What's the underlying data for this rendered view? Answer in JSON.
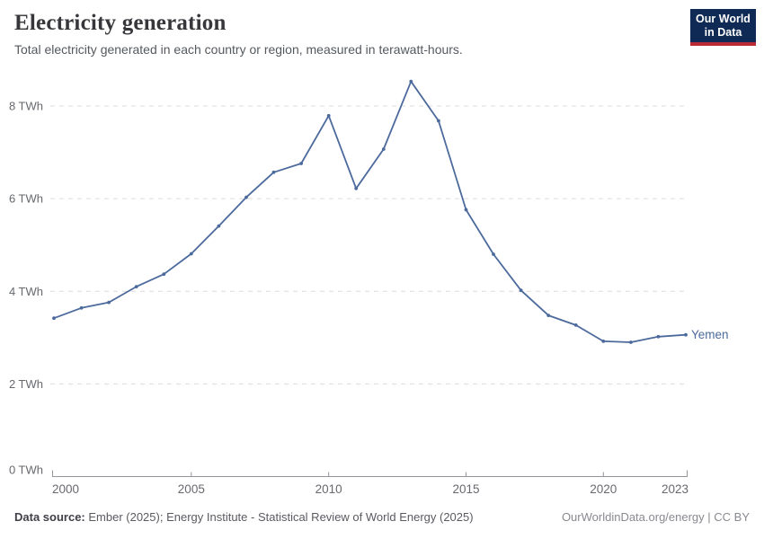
{
  "header": {
    "title": "Electricity generation",
    "subtitle": "Total electricity generated in each country or region, measured in terawatt-hours."
  },
  "logo": {
    "line1": "Our World",
    "line2": "in Data",
    "bg_color": "#0f2a54",
    "accent_color": "#bc2a35",
    "text_color": "#ffffff"
  },
  "chart_data": {
    "type": "line",
    "title": "Electricity generation",
    "xlabel": "",
    "ylabel": "",
    "unit": "TWh",
    "x": [
      2000,
      2001,
      2002,
      2003,
      2004,
      2005,
      2006,
      2007,
      2008,
      2009,
      2010,
      2011,
      2012,
      2013,
      2014,
      2015,
      2016,
      2017,
      2018,
      2019,
      2020,
      2021,
      2022,
      2023
    ],
    "series": [
      {
        "name": "Yemen",
        "color": "#4C6A9C",
        "values": [
          3.42,
          3.64,
          3.76,
          4.1,
          4.37,
          4.81,
          5.41,
          6.03,
          6.57,
          6.76,
          7.79,
          6.22,
          7.07,
          8.53,
          7.68,
          5.76,
          4.8,
          4.02,
          3.48,
          3.27,
          2.92,
          2.9,
          3.02,
          3.06
        ]
      }
    ],
    "ylim": [
      0,
      8.6
    ],
    "yticks": [
      0,
      2,
      4,
      6,
      8
    ],
    "ytick_labels": [
      "0 TWh",
      "2 TWh",
      "4 TWh",
      "6 TWh",
      "8 TWh"
    ],
    "xticks": [
      2000,
      2005,
      2010,
      2015,
      2020,
      2023
    ],
    "xtick_labels": [
      "2000",
      "2005",
      "2010",
      "2015",
      "2020",
      "2023"
    ],
    "grid": "horizontal-dashed",
    "legend": "series-end-label",
    "colors": {
      "grid": "#dcdcdc",
      "axis": "#95969b",
      "tick_label": "#67696e"
    }
  },
  "footer": {
    "source_label": "Data source:",
    "source_text": " Ember (2025); Energy Institute - Statistical Review of World Energy (2025)",
    "link_text": "OurWorldinData.org/energy | CC BY"
  }
}
